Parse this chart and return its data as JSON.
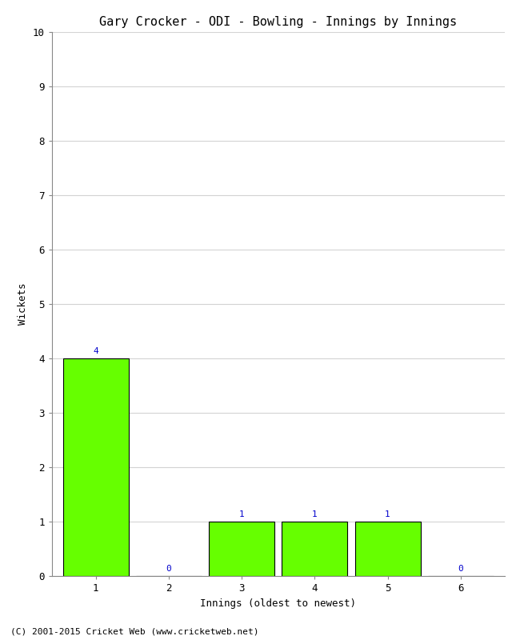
{
  "title": "Gary Crocker - ODI - Bowling - Innings by Innings",
  "xlabel": "Innings (oldest to newest)",
  "ylabel": "Wickets",
  "categories": [
    "1",
    "2",
    "3",
    "4",
    "5",
    "6"
  ],
  "values": [
    4,
    0,
    1,
    1,
    1,
    0
  ],
  "bar_color": "#66ff00",
  "bar_edge_color": "#000000",
  "ylim": [
    0,
    10
  ],
  "yticks": [
    0,
    1,
    2,
    3,
    4,
    5,
    6,
    7,
    8,
    9,
    10
  ],
  "label_color": "#0000cc",
  "background_color": "#ffffff",
  "plot_bg_color": "#ffffff",
  "grid_color": "#d3d3d3",
  "footer": "(C) 2001-2015 Cricket Web (www.cricketweb.net)",
  "title_fontsize": 11,
  "axis_label_fontsize": 9,
  "tick_fontsize": 9,
  "annotation_fontsize": 8,
  "footer_fontsize": 8,
  "bar_width": 0.9
}
